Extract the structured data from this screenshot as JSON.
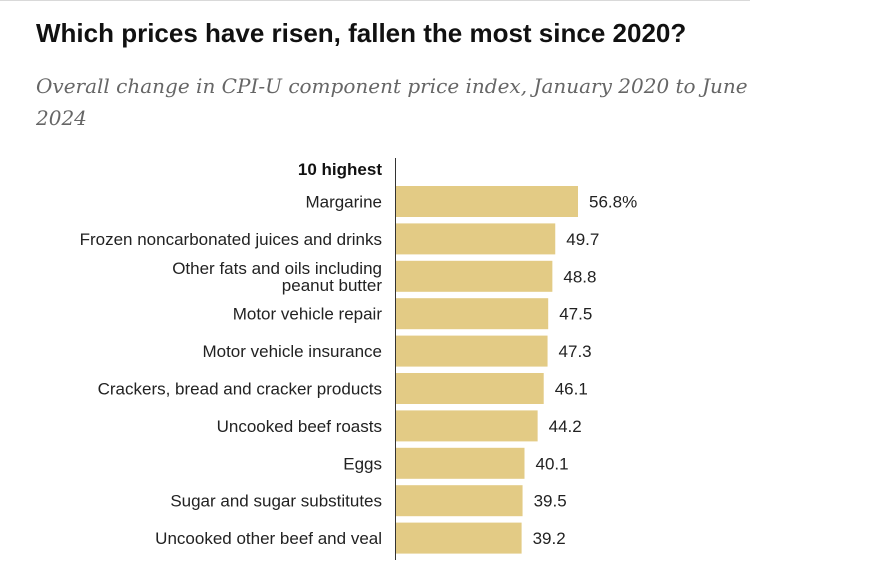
{
  "chart_data": {
    "type": "bar",
    "orientation": "horizontal",
    "title": "Which prices have risen, fallen the most since 2020?",
    "subtitle": "Overall change in CPI-U component price index, January 2020 to June 2024",
    "group_label": "10 highest",
    "categories": [
      [
        "Margarine"
      ],
      [
        "Frozen noncarbonated juices and drinks"
      ],
      [
        "Other fats and oils including",
        "peanut butter"
      ],
      [
        "Motor vehicle repair"
      ],
      [
        "Motor vehicle insurance"
      ],
      [
        "Crackers, bread and cracker products"
      ],
      [
        "Uncooked beef roasts"
      ],
      [
        "Eggs"
      ],
      [
        "Sugar and sugar substitutes"
      ],
      [
        "Uncooked other beef and veal"
      ]
    ],
    "values": [
      56.8,
      49.7,
      48.8,
      47.5,
      47.3,
      46.1,
      44.2,
      40.1,
      39.5,
      39.2
    ],
    "value_labels": [
      "56.8%",
      "49.7",
      "48.8",
      "47.5",
      "47.3",
      "46.1",
      "44.2",
      "40.1",
      "39.5",
      "39.2"
    ],
    "xlim": [
      0,
      56.8
    ],
    "bar_color": "#e3cb85",
    "grid": false
  }
}
